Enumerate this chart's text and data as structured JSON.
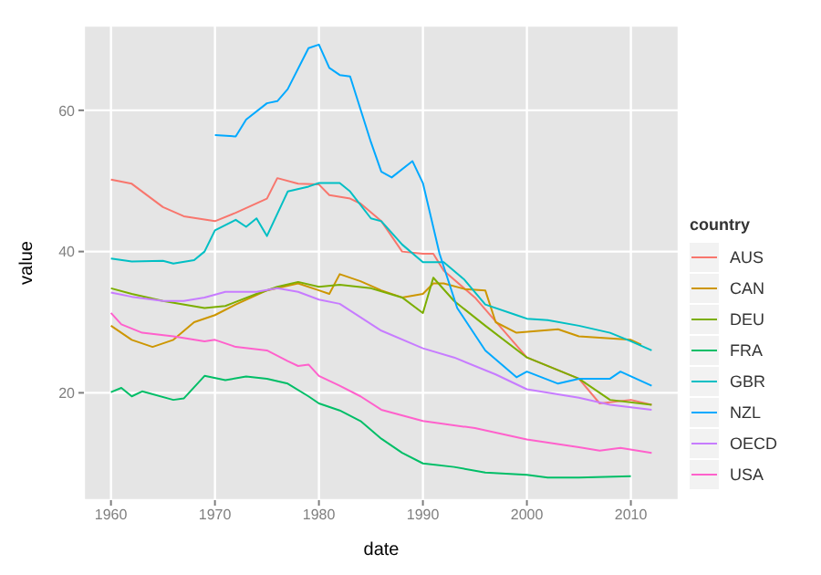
{
  "chart_data": {
    "type": "line",
    "xlabel": "date",
    "ylabel": "value",
    "legend_title": "country",
    "legend": "right",
    "grid": true,
    "xlim": [
      1957.4,
      2014.6
    ],
    "xticks": [
      1960,
      1970,
      1980,
      1990,
      2000,
      2010
    ],
    "ylim": [
      4.8,
      72
    ],
    "yticks": [
      20,
      40,
      60
    ],
    "series": [
      {
        "name": "AUS",
        "color": "#f8766d",
        "x": [
          1960,
          1962,
          1965,
          1967,
          1970,
          1972,
          1975,
          1976,
          1978,
          1980,
          1981,
          1983,
          1984,
          1986,
          1988,
          1990,
          1991,
          1992,
          1995,
          2000,
          2005,
          2007,
          2010,
          2012
        ],
        "values": [
          50.2,
          49.6,
          46.3,
          45,
          44.3,
          45.5,
          47.5,
          50.4,
          49.6,
          49.5,
          48,
          47.5,
          46.8,
          44.3,
          40,
          39.7,
          39.7,
          37.3,
          33.5,
          25,
          22,
          18.5,
          19,
          18.3
        ]
      },
      {
        "name": "CAN",
        "color": "#cd9600",
        "x": [
          1960,
          1962,
          1964,
          1966,
          1968,
          1970,
          1972,
          1975,
          1978,
          1980,
          1981,
          1982,
          1984,
          1986,
          1988,
          1990,
          1991,
          1992,
          1994,
          1996,
          1997,
          1999,
          2003,
          2005,
          2010,
          2011
        ],
        "values": [
          29.5,
          27.5,
          26.5,
          27.5,
          30,
          31,
          32.5,
          34.5,
          35.5,
          34.5,
          34,
          36.8,
          35.8,
          34.5,
          33.5,
          34,
          35.5,
          35.5,
          34.7,
          34.5,
          30,
          28.5,
          29,
          28,
          27.5,
          26.8
        ]
      },
      {
        "name": "DEU",
        "color": "#7cae00",
        "x": [
          1960,
          1962,
          1965,
          1969,
          1971,
          1974,
          1976,
          1978,
          1980,
          1982,
          1985,
          1988,
          1990,
          1991,
          1993,
          1996,
          2000,
          2005,
          2008,
          2012
        ],
        "values": [
          34.8,
          34,
          33,
          32,
          32.3,
          34,
          35,
          35.7,
          35,
          35.3,
          34.8,
          33.5,
          31.3,
          36.3,
          33,
          29.5,
          25,
          22,
          19,
          18.3
        ]
      },
      {
        "name": "FRA",
        "color": "#00be67",
        "x": [
          1960,
          1961,
          1962,
          1963,
          1966,
          1967,
          1969,
          1971,
          1973,
          1975,
          1977,
          1979,
          1980,
          1982,
          1984,
          1986,
          1988,
          1990,
          1993,
          1996,
          2000,
          2002,
          2005,
          2010
        ],
        "values": [
          20.1,
          20.7,
          19.5,
          20.2,
          19,
          19.2,
          22.4,
          21.8,
          22.3,
          22,
          21.3,
          19.5,
          18.5,
          17.5,
          16,
          13.5,
          11.5,
          10,
          9.5,
          8.7,
          8.4,
          8,
          8,
          8.2
        ]
      },
      {
        "name": "GBR",
        "color": "#00bfc4",
        "x": [
          1960,
          1962,
          1965,
          1966,
          1968,
          1969,
          1970,
          1972,
          1973,
          1974,
          1975,
          1977,
          1979,
          1980,
          1982,
          1983,
          1985,
          1986,
          1988,
          1990,
          1992,
          1994,
          1996,
          1999,
          2000,
          2002,
          2005,
          2008,
          2010,
          2012
        ],
        "values": [
          39,
          38.6,
          38.7,
          38.3,
          38.8,
          40,
          43,
          44.5,
          43.5,
          44.7,
          42.2,
          48.5,
          49.2,
          49.7,
          49.7,
          48.5,
          44.7,
          44.3,
          41,
          38.5,
          38.5,
          36,
          32.5,
          31,
          30.5,
          30.3,
          29.5,
          28.5,
          27.3,
          26
        ]
      },
      {
        "name": "NZL",
        "color": "#00a9ff",
        "x": [
          1970,
          1972,
          1973,
          1975,
          1976,
          1977,
          1979,
          1980,
          1981,
          1982,
          1983,
          1985,
          1986,
          1987,
          1989,
          1990,
          1991.6,
          1993.3,
          1996,
          1999,
          2000,
          2003,
          2005,
          2008,
          2009,
          2012
        ],
        "values": [
          56.5,
          56.3,
          58.7,
          61,
          61.3,
          63,
          68.8,
          69.3,
          66,
          65,
          64.8,
          55.5,
          51.3,
          50.5,
          52.8,
          49.7,
          39.7,
          32,
          26,
          22.2,
          23,
          21.3,
          22,
          22,
          23,
          21
        ]
      },
      {
        "name": "OECD",
        "color": "#c77cff",
        "x": [
          1960,
          1962,
          1965,
          1967,
          1969,
          1971,
          1974,
          1976,
          1978,
          1980,
          1982,
          1986,
          1990,
          1993,
          1997,
          2000,
          2005,
          2008,
          2012
        ],
        "values": [
          34.2,
          33.6,
          33,
          33,
          33.5,
          34.3,
          34.3,
          34.8,
          34.3,
          33.2,
          32.6,
          28.8,
          26.3,
          25,
          22.6,
          20.5,
          19.3,
          18.3,
          17.6
        ]
      },
      {
        "name": "USA",
        "color": "#ff61cc",
        "x": [
          1960,
          1961,
          1963,
          1966,
          1969,
          1970,
          1972,
          1975,
          1977,
          1978,
          1979,
          1980,
          1982,
          1984,
          1986,
          1990,
          1995,
          2000,
          2005,
          2007,
          2009,
          2012
        ],
        "values": [
          31.3,
          29.7,
          28.5,
          28,
          27.3,
          27.5,
          26.5,
          26,
          24.5,
          23.8,
          24,
          22.4,
          21,
          19.5,
          17.6,
          16,
          15,
          13.4,
          12.3,
          11.8,
          12.2,
          11.5
        ]
      }
    ]
  }
}
